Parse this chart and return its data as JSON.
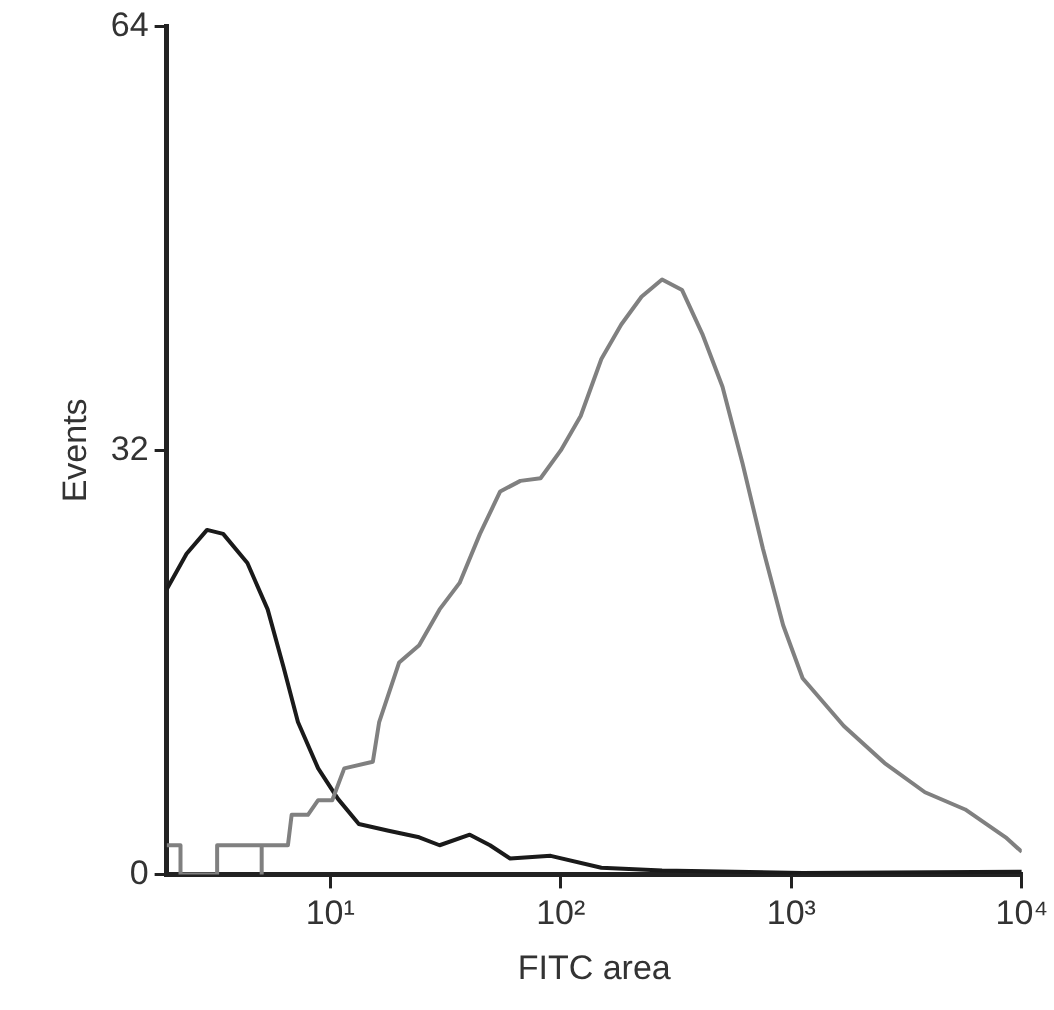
{
  "chart_data": {
    "type": "line",
    "xlabel": "FITC area",
    "ylabel": "Events",
    "log": "x",
    "grid": false,
    "legend": false,
    "marker": "none",
    "line_style": "solid",
    "xlim": [
      1.95,
      10000
    ],
    "xticks": [
      {
        "value": 10,
        "label": "10¹"
      },
      {
        "value": 100,
        "label": "10²"
      },
      {
        "value": 1000,
        "label": "10³"
      },
      {
        "value": 10000,
        "label": "10⁴"
      }
    ],
    "ylim": [
      0,
      64
    ],
    "yticks": [
      0,
      32,
      64
    ],
    "series": [
      {
        "color": "#808080",
        "x": [
          1.95,
          2.24,
          2.24,
          3.23,
          3.23,
          5.04,
          5.04,
          5.04,
          6.55,
          6.8,
          8,
          8.86,
          10.2,
          11.5,
          15.3,
          16.3,
          19.9,
          24.3,
          29.8,
          36.4,
          44.6,
          54.6,
          66.8,
          81.7,
          100,
          122,
          150,
          183,
          224,
          275,
          336,
          411,
          503,
          615,
          753,
          922,
          1120,
          1690,
          2540,
          3800,
          5680,
          8510,
          10000
        ],
        "values": [
          2.2,
          2.2,
          0,
          0,
          2.2,
          2.2,
          0,
          2.2,
          2.2,
          4.5,
          4.5,
          5.6,
          5.6,
          8,
          8.5,
          11.5,
          16,
          17.3,
          20,
          22,
          25.7,
          28.9,
          29.7,
          29.9,
          32,
          34.6,
          38.9,
          41.5,
          43.6,
          44.9,
          44.1,
          40.8,
          36.8,
          31,
          24.6,
          18.8,
          14.8,
          11.2,
          8.4,
          6.2,
          4.9,
          2.8,
          1.7
        ]
      },
      {
        "color": "#1a1a1a",
        "x": [
          1.95,
          2.38,
          2.92,
          3.43,
          4.37,
          5.35,
          6.28,
          7.24,
          8.86,
          10.8,
          13.3,
          17.9,
          24.3,
          29.8,
          40.3,
          49.3,
          60.3,
          90.4,
          150,
          275,
          1120,
          10000
        ],
        "values": [
          21.5,
          24.2,
          26,
          25.7,
          23.5,
          20,
          15.6,
          11.5,
          8,
          5.7,
          3.8,
          3.3,
          2.8,
          2.2,
          3,
          2.2,
          1.2,
          1.4,
          0.5,
          0.3,
          0.1,
          0.2
        ]
      }
    ]
  }
}
